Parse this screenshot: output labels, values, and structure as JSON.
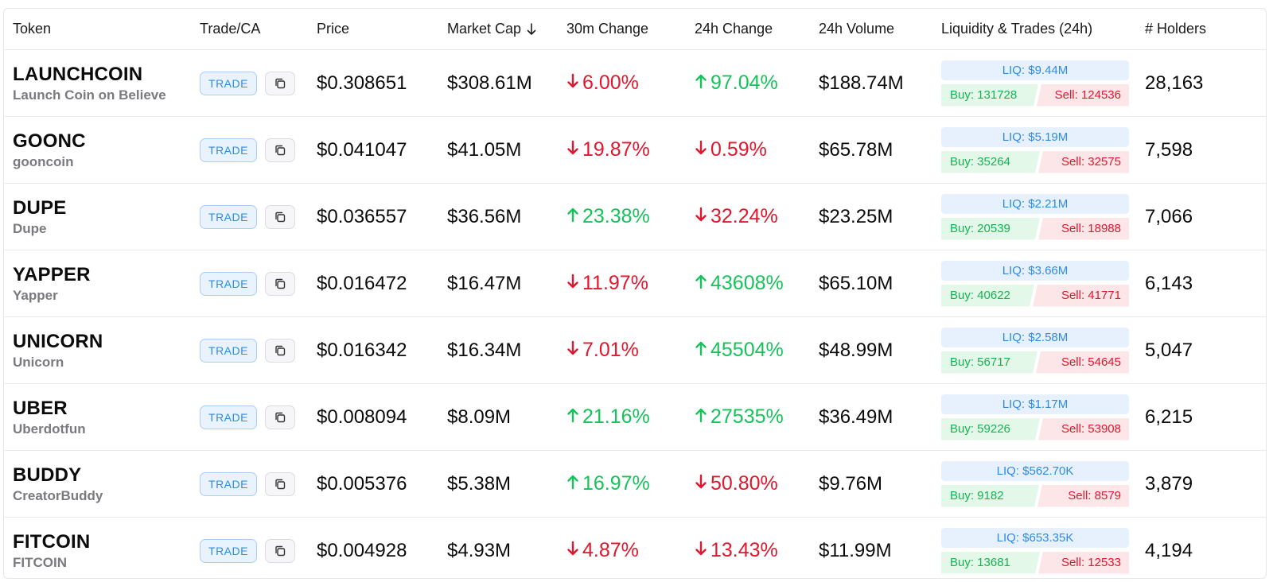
{
  "header": {
    "token": "Token",
    "trade": "Trade/CA",
    "price": "Price",
    "mcap": "Market Cap",
    "change30m": "30m Change",
    "change24h": "24h Change",
    "volume": "24h Volume",
    "liquidity": "Liquidity & Trades (24h)",
    "holders": "# Holders",
    "sort_icon": "arrow-down-icon"
  },
  "trade_label": "TRADE",
  "colors": {
    "up": "#16c35a",
    "down": "#e0172d",
    "accent": "#2f8be6"
  },
  "rows": [
    {
      "symbol": "LAUNCHCOIN",
      "name": "Launch Coin on Believe",
      "price": "$0.308651",
      "mcap": "$308.61M",
      "chg30": "6.00%",
      "chg30_dir": "down",
      "chg24": "97.04%",
      "chg24_dir": "up",
      "volume": "$188.74M",
      "liq": "LIQ: $9.44M",
      "buy": "Buy: 131728",
      "sell": "Sell: 124536",
      "buy_n": 131728,
      "sell_n": 124536,
      "holders": "28,163"
    },
    {
      "symbol": "GOONC",
      "name": "gooncoin",
      "price": "$0.041047",
      "mcap": "$41.05M",
      "chg30": "19.87%",
      "chg30_dir": "down",
      "chg24": "0.59%",
      "chg24_dir": "down",
      "volume": "$65.78M",
      "liq": "LIQ: $5.19M",
      "buy": "Buy: 35264",
      "sell": "Sell: 32575",
      "buy_n": 35264,
      "sell_n": 32575,
      "holders": "7,598"
    },
    {
      "symbol": "DUPE",
      "name": "Dupe",
      "price": "$0.036557",
      "mcap": "$36.56M",
      "chg30": "23.38%",
      "chg30_dir": "up",
      "chg24": "32.24%",
      "chg24_dir": "down",
      "volume": "$23.25M",
      "liq": "LIQ: $2.21M",
      "buy": "Buy: 20539",
      "sell": "Sell: 18988",
      "buy_n": 20539,
      "sell_n": 18988,
      "holders": "7,066"
    },
    {
      "symbol": "YAPPER",
      "name": "Yapper",
      "price": "$0.016472",
      "mcap": "$16.47M",
      "chg30": "11.97%",
      "chg30_dir": "down",
      "chg24": "43608%",
      "chg24_dir": "up",
      "volume": "$65.10M",
      "liq": "LIQ: $3.66M",
      "buy": "Buy: 40622",
      "sell": "Sell: 41771",
      "buy_n": 40622,
      "sell_n": 41771,
      "holders": "6,143"
    },
    {
      "symbol": "UNICORN",
      "name": "Unicorn",
      "price": "$0.016342",
      "mcap": "$16.34M",
      "chg30": "7.01%",
      "chg30_dir": "down",
      "chg24": "45504%",
      "chg24_dir": "up",
      "volume": "$48.99M",
      "liq": "LIQ: $2.58M",
      "buy": "Buy: 56717",
      "sell": "Sell: 54645",
      "buy_n": 56717,
      "sell_n": 54645,
      "holders": "5,047"
    },
    {
      "symbol": "UBER",
      "name": "Uberdotfun",
      "price": "$0.008094",
      "mcap": "$8.09M",
      "chg30": "21.16%",
      "chg30_dir": "up",
      "chg24": "27535%",
      "chg24_dir": "up",
      "volume": "$36.49M",
      "liq": "LIQ: $1.17M",
      "buy": "Buy: 59226",
      "sell": "Sell: 53908",
      "buy_n": 59226,
      "sell_n": 53908,
      "holders": "6,215"
    },
    {
      "symbol": "BUDDY",
      "name": "CreatorBuddy",
      "price": "$0.005376",
      "mcap": "$5.38M",
      "chg30": "16.97%",
      "chg30_dir": "up",
      "chg24": "50.80%",
      "chg24_dir": "down",
      "volume": "$9.76M",
      "liq": "LIQ: $562.70K",
      "buy": "Buy: 9182",
      "sell": "Sell: 8579",
      "buy_n": 9182,
      "sell_n": 8579,
      "holders": "3,879"
    },
    {
      "symbol": "FITCOIN",
      "name": "FITCOIN",
      "price": "$0.004928",
      "mcap": "$4.93M",
      "chg30": "4.87%",
      "chg30_dir": "down",
      "chg24": "13.43%",
      "chg24_dir": "down",
      "volume": "$11.99M",
      "liq": "LIQ: $653.35K",
      "buy": "Buy: 13681",
      "sell": "Sell: 12533",
      "buy_n": 13681,
      "sell_n": 12533,
      "holders": "4,194"
    }
  ]
}
